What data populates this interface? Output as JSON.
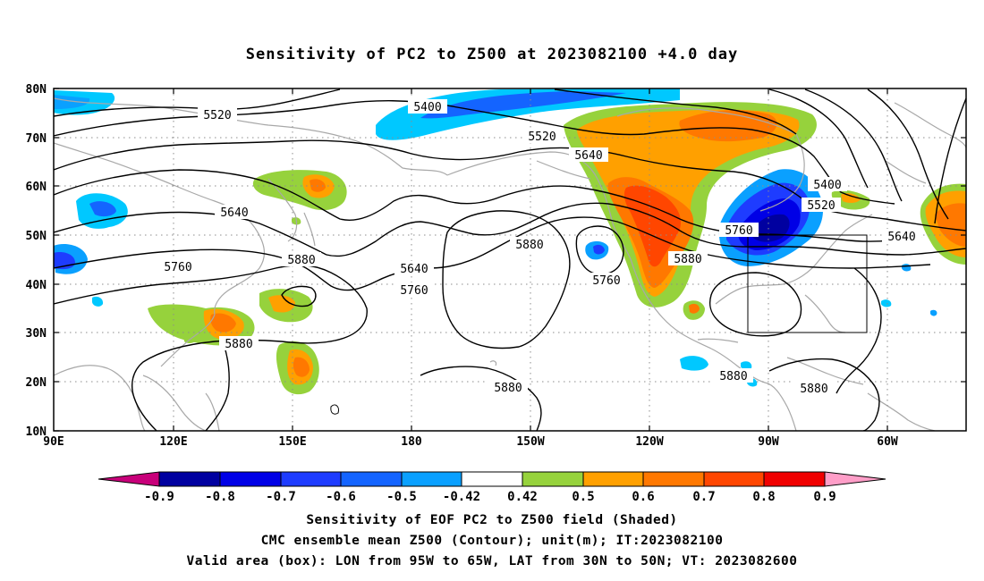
{
  "title": "Sensitivity of PC2 to Z500 at 2023082100 +4.0 day",
  "lat_ticks": [
    "80N",
    "70N",
    "60N",
    "50N",
    "40N",
    "30N",
    "20N",
    "10N"
  ],
  "lon_ticks": [
    "90E",
    "120E",
    "150E",
    "180",
    "150W",
    "120W",
    "90W",
    "60W"
  ],
  "contour_labels": [
    {
      "text": "5400",
      "name": "contour-label-5400-arctic"
    },
    {
      "text": "5520",
      "name": "contour-label-5520-west"
    },
    {
      "text": "5520",
      "name": "contour-label-5520-central"
    },
    {
      "text": "5640",
      "name": "contour-label-5640-central"
    },
    {
      "text": "5640",
      "name": "contour-label-5640-west"
    },
    {
      "text": "5760",
      "name": "contour-label-5760-west"
    },
    {
      "text": "5880",
      "name": "contour-label-5880-west"
    },
    {
      "text": "5640",
      "name": "contour-label-5640-pacific"
    },
    {
      "text": "5760",
      "name": "contour-label-5760-pacific"
    },
    {
      "text": "5880",
      "name": "contour-label-5880-pacific"
    },
    {
      "text": "5760",
      "name": "contour-label-5760-low"
    },
    {
      "text": "5880",
      "name": "contour-label-5880-southwest"
    },
    {
      "text": "5880",
      "name": "contour-label-5880-tropics"
    },
    {
      "text": "5760",
      "name": "contour-label-5760-east"
    },
    {
      "text": "5880",
      "name": "contour-label-5880-east"
    },
    {
      "text": "5400",
      "name": "contour-label-5400-east"
    },
    {
      "text": "5520",
      "name": "contour-label-5520-east"
    },
    {
      "text": "5640",
      "name": "contour-label-5640-east"
    },
    {
      "text": "5880",
      "name": "contour-label-5880-gulf"
    },
    {
      "text": "5880",
      "name": "contour-label-5880-caribbean"
    }
  ],
  "colorbar": {
    "colors": [
      "#c8007a",
      "#0000a0",
      "#0000e6",
      "#1e3cff",
      "#1464ff",
      "#0aa0ff",
      "#00c8ff",
      "#ffffff",
      "#96d23c",
      "#ffa000",
      "#ff7800",
      "#ff4600",
      "#f00000",
      "#ff9ec8"
    ],
    "labels": [
      "-0.9",
      "-0.8",
      "-0.7",
      "-0.6",
      "-0.5",
      "-0.42",
      "0.42",
      "0.5",
      "0.6",
      "0.7",
      "0.8",
      "0.9"
    ]
  },
  "footer": {
    "line1": "Sensitivity of EOF PC2 to Z500 field (Shaded)",
    "line2": "CMC ensemble mean Z500 (Contour); unit(m); IT:2023082100",
    "line3": "Valid area (box): LON from 95W to 65W, LAT from 30N to 50N; VT: 2023082600"
  }
}
